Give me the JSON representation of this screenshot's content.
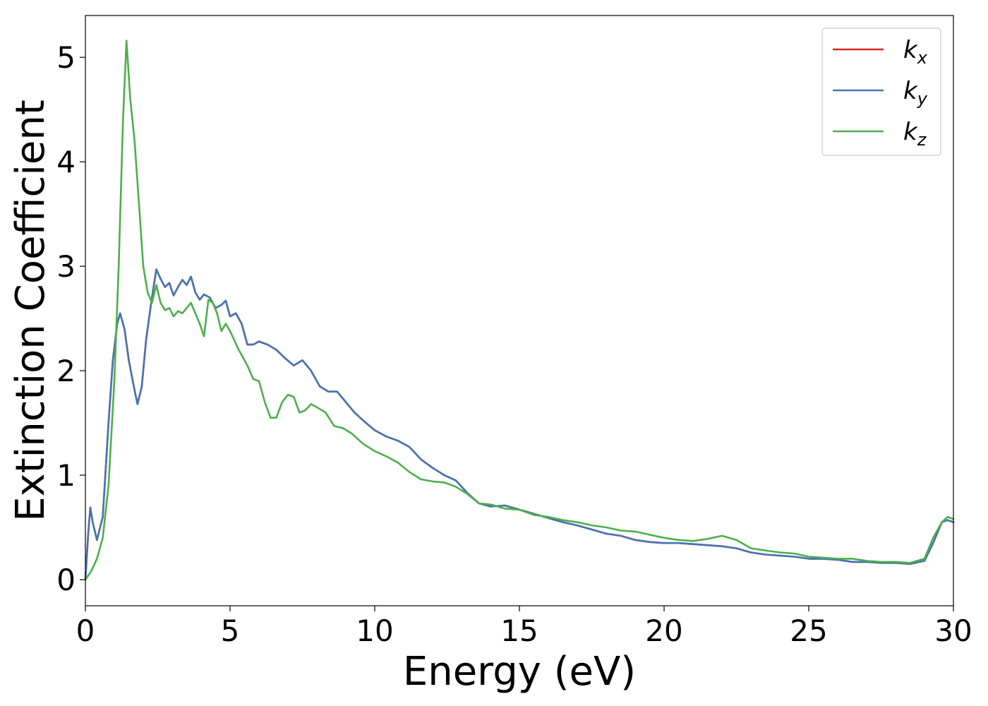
{
  "chart_data": {
    "type": "line",
    "xlabel": "Energy (eV)",
    "ylabel": "Extinction Coefficient",
    "xlim": [
      0,
      30
    ],
    "ylim": [
      -0.25,
      5.4
    ],
    "x_ticks": [
      "0",
      "5",
      "10",
      "15",
      "20",
      "25",
      "30"
    ],
    "y_ticks": [
      "0",
      "1",
      "2",
      "3",
      "4",
      "5"
    ],
    "grid": false,
    "legend_position": "top-right",
    "series": [
      {
        "name": "k_x",
        "legend_base": "k",
        "legend_sub": "x",
        "color": "#d62728",
        "points": [
          [
            0,
            0
          ],
          [
            0.1,
            0.45
          ],
          [
            0.17,
            0.69
          ],
          [
            0.25,
            0.55
          ],
          [
            0.4,
            0.38
          ],
          [
            0.6,
            0.6
          ],
          [
            0.8,
            1.5
          ],
          [
            0.95,
            2.1
          ],
          [
            1.1,
            2.45
          ],
          [
            1.2,
            2.55
          ],
          [
            1.35,
            2.4
          ],
          [
            1.5,
            2.1
          ],
          [
            1.65,
            1.88
          ],
          [
            1.8,
            1.68
          ],
          [
            1.95,
            1.85
          ],
          [
            2.1,
            2.3
          ],
          [
            2.3,
            2.7
          ],
          [
            2.45,
            2.97
          ],
          [
            2.6,
            2.88
          ],
          [
            2.75,
            2.8
          ],
          [
            2.9,
            2.84
          ],
          [
            3.05,
            2.72
          ],
          [
            3.2,
            2.8
          ],
          [
            3.35,
            2.87
          ],
          [
            3.5,
            2.82
          ],
          [
            3.65,
            2.9
          ],
          [
            3.8,
            2.75
          ],
          [
            3.95,
            2.68
          ],
          [
            4.1,
            2.73
          ],
          [
            4.3,
            2.7
          ],
          [
            4.5,
            2.6
          ],
          [
            4.7,
            2.63
          ],
          [
            4.85,
            2.67
          ],
          [
            5.0,
            2.52
          ],
          [
            5.2,
            2.55
          ],
          [
            5.4,
            2.45
          ],
          [
            5.6,
            2.25
          ],
          [
            5.8,
            2.25
          ],
          [
            6.0,
            2.28
          ],
          [
            6.3,
            2.25
          ],
          [
            6.6,
            2.2
          ],
          [
            6.9,
            2.12
          ],
          [
            7.2,
            2.05
          ],
          [
            7.5,
            2.1
          ],
          [
            7.8,
            2.0
          ],
          [
            8.1,
            1.85
          ],
          [
            8.4,
            1.8
          ],
          [
            8.7,
            1.8
          ],
          [
            9.0,
            1.7
          ],
          [
            9.3,
            1.6
          ],
          [
            9.7,
            1.5
          ],
          [
            10.0,
            1.43
          ],
          [
            10.4,
            1.37
          ],
          [
            10.8,
            1.33
          ],
          [
            11.2,
            1.27
          ],
          [
            11.6,
            1.15
          ],
          [
            12.0,
            1.07
          ],
          [
            12.4,
            1.0
          ],
          [
            12.8,
            0.95
          ],
          [
            13.2,
            0.83
          ],
          [
            13.6,
            0.73
          ],
          [
            14.0,
            0.7
          ],
          [
            14.5,
            0.71
          ],
          [
            15.0,
            0.67
          ],
          [
            15.5,
            0.63
          ],
          [
            16.0,
            0.59
          ],
          [
            16.5,
            0.55
          ],
          [
            17.0,
            0.52
          ],
          [
            17.5,
            0.48
          ],
          [
            18.0,
            0.44
          ],
          [
            18.5,
            0.42
          ],
          [
            19.0,
            0.38
          ],
          [
            19.5,
            0.36
          ],
          [
            20.0,
            0.35
          ],
          [
            20.5,
            0.35
          ],
          [
            21.0,
            0.34
          ],
          [
            21.5,
            0.33
          ],
          [
            22.0,
            0.32
          ],
          [
            22.5,
            0.3
          ],
          [
            23.0,
            0.26
          ],
          [
            23.5,
            0.24
          ],
          [
            24.0,
            0.23
          ],
          [
            24.5,
            0.22
          ],
          [
            25.0,
            0.2
          ],
          [
            25.5,
            0.2
          ],
          [
            26.0,
            0.19
          ],
          [
            26.5,
            0.17
          ],
          [
            27.0,
            0.17
          ],
          [
            27.5,
            0.16
          ],
          [
            28.0,
            0.16
          ],
          [
            28.5,
            0.15
          ],
          [
            29.0,
            0.18
          ],
          [
            29.3,
            0.35
          ],
          [
            29.6,
            0.55
          ],
          [
            29.8,
            0.57
          ],
          [
            30.0,
            0.55
          ]
        ]
      },
      {
        "name": "k_y",
        "legend_base": "k",
        "legend_sub": "y",
        "color": "#4575b4",
        "points": [
          [
            0,
            0
          ],
          [
            0.1,
            0.45
          ],
          [
            0.17,
            0.69
          ],
          [
            0.25,
            0.55
          ],
          [
            0.4,
            0.38
          ],
          [
            0.6,
            0.6
          ],
          [
            0.8,
            1.5
          ],
          [
            0.95,
            2.1
          ],
          [
            1.1,
            2.45
          ],
          [
            1.2,
            2.55
          ],
          [
            1.35,
            2.4
          ],
          [
            1.5,
            2.1
          ],
          [
            1.65,
            1.88
          ],
          [
            1.8,
            1.68
          ],
          [
            1.95,
            1.85
          ],
          [
            2.1,
            2.3
          ],
          [
            2.3,
            2.7
          ],
          [
            2.45,
            2.97
          ],
          [
            2.6,
            2.88
          ],
          [
            2.75,
            2.8
          ],
          [
            2.9,
            2.84
          ],
          [
            3.05,
            2.72
          ],
          [
            3.2,
            2.8
          ],
          [
            3.35,
            2.87
          ],
          [
            3.5,
            2.82
          ],
          [
            3.65,
            2.9
          ],
          [
            3.8,
            2.75
          ],
          [
            3.95,
            2.68
          ],
          [
            4.1,
            2.73
          ],
          [
            4.3,
            2.7
          ],
          [
            4.5,
            2.6
          ],
          [
            4.7,
            2.63
          ],
          [
            4.85,
            2.67
          ],
          [
            5.0,
            2.52
          ],
          [
            5.2,
            2.55
          ],
          [
            5.4,
            2.45
          ],
          [
            5.6,
            2.25
          ],
          [
            5.8,
            2.25
          ],
          [
            6.0,
            2.28
          ],
          [
            6.3,
            2.25
          ],
          [
            6.6,
            2.2
          ],
          [
            6.9,
            2.12
          ],
          [
            7.2,
            2.05
          ],
          [
            7.5,
            2.1
          ],
          [
            7.8,
            2.0
          ],
          [
            8.1,
            1.85
          ],
          [
            8.4,
            1.8
          ],
          [
            8.7,
            1.8
          ],
          [
            9.0,
            1.7
          ],
          [
            9.3,
            1.6
          ],
          [
            9.7,
            1.5
          ],
          [
            10.0,
            1.43
          ],
          [
            10.4,
            1.37
          ],
          [
            10.8,
            1.33
          ],
          [
            11.2,
            1.27
          ],
          [
            11.6,
            1.15
          ],
          [
            12.0,
            1.07
          ],
          [
            12.4,
            1.0
          ],
          [
            12.8,
            0.95
          ],
          [
            13.2,
            0.83
          ],
          [
            13.6,
            0.73
          ],
          [
            14.0,
            0.7
          ],
          [
            14.5,
            0.71
          ],
          [
            15.0,
            0.67
          ],
          [
            15.5,
            0.63
          ],
          [
            16.0,
            0.59
          ],
          [
            16.5,
            0.55
          ],
          [
            17.0,
            0.52
          ],
          [
            17.5,
            0.48
          ],
          [
            18.0,
            0.44
          ],
          [
            18.5,
            0.42
          ],
          [
            19.0,
            0.38
          ],
          [
            19.5,
            0.36
          ],
          [
            20.0,
            0.35
          ],
          [
            20.5,
            0.35
          ],
          [
            21.0,
            0.34
          ],
          [
            21.5,
            0.33
          ],
          [
            22.0,
            0.32
          ],
          [
            22.5,
            0.3
          ],
          [
            23.0,
            0.26
          ],
          [
            23.5,
            0.24
          ],
          [
            24.0,
            0.23
          ],
          [
            24.5,
            0.22
          ],
          [
            25.0,
            0.2
          ],
          [
            25.5,
            0.2
          ],
          [
            26.0,
            0.19
          ],
          [
            26.5,
            0.17
          ],
          [
            27.0,
            0.17
          ],
          [
            27.5,
            0.16
          ],
          [
            28.0,
            0.16
          ],
          [
            28.5,
            0.15
          ],
          [
            29.0,
            0.18
          ],
          [
            29.3,
            0.35
          ],
          [
            29.6,
            0.55
          ],
          [
            29.8,
            0.57
          ],
          [
            30.0,
            0.55
          ]
        ]
      },
      {
        "name": "k_z",
        "legend_base": "k",
        "legend_sub": "z",
        "color": "#4daf4a",
        "points": [
          [
            0,
            0
          ],
          [
            0.2,
            0.08
          ],
          [
            0.4,
            0.2
          ],
          [
            0.6,
            0.4
          ],
          [
            0.8,
            0.9
          ],
          [
            1.0,
            1.9
          ],
          [
            1.15,
            3.0
          ],
          [
            1.3,
            4.4
          ],
          [
            1.42,
            5.16
          ],
          [
            1.55,
            4.6
          ],
          [
            1.7,
            4.2
          ],
          [
            1.85,
            3.6
          ],
          [
            2.0,
            3.0
          ],
          [
            2.15,
            2.75
          ],
          [
            2.3,
            2.65
          ],
          [
            2.45,
            2.82
          ],
          [
            2.6,
            2.65
          ],
          [
            2.75,
            2.58
          ],
          [
            2.9,
            2.6
          ],
          [
            3.05,
            2.52
          ],
          [
            3.2,
            2.57
          ],
          [
            3.35,
            2.55
          ],
          [
            3.5,
            2.6
          ],
          [
            3.65,
            2.65
          ],
          [
            3.8,
            2.55
          ],
          [
            3.95,
            2.45
          ],
          [
            4.1,
            2.33
          ],
          [
            4.25,
            2.68
          ],
          [
            4.4,
            2.65
          ],
          [
            4.55,
            2.55
          ],
          [
            4.7,
            2.38
          ],
          [
            4.85,
            2.45
          ],
          [
            5.0,
            2.38
          ],
          [
            5.3,
            2.2
          ],
          [
            5.6,
            2.05
          ],
          [
            5.8,
            1.92
          ],
          [
            6.0,
            1.9
          ],
          [
            6.2,
            1.7
          ],
          [
            6.4,
            1.55
          ],
          [
            6.6,
            1.55
          ],
          [
            6.8,
            1.7
          ],
          [
            7.0,
            1.77
          ],
          [
            7.2,
            1.75
          ],
          [
            7.4,
            1.6
          ],
          [
            7.6,
            1.62
          ],
          [
            7.8,
            1.68
          ],
          [
            8.0,
            1.65
          ],
          [
            8.3,
            1.6
          ],
          [
            8.6,
            1.47
          ],
          [
            8.9,
            1.45
          ],
          [
            9.2,
            1.4
          ],
          [
            9.6,
            1.3
          ],
          [
            10.0,
            1.23
          ],
          [
            10.4,
            1.18
          ],
          [
            10.8,
            1.12
          ],
          [
            11.2,
            1.03
          ],
          [
            11.6,
            0.96
          ],
          [
            12.0,
            0.94
          ],
          [
            12.4,
            0.93
          ],
          [
            12.8,
            0.89
          ],
          [
            13.2,
            0.82
          ],
          [
            13.6,
            0.73
          ],
          [
            14.0,
            0.72
          ],
          [
            14.5,
            0.68
          ],
          [
            15.0,
            0.67
          ],
          [
            15.5,
            0.62
          ],
          [
            16.0,
            0.6
          ],
          [
            16.5,
            0.57
          ],
          [
            17.0,
            0.55
          ],
          [
            17.5,
            0.52
          ],
          [
            18.0,
            0.5
          ],
          [
            18.5,
            0.47
          ],
          [
            19.0,
            0.46
          ],
          [
            19.5,
            0.43
          ],
          [
            20.0,
            0.4
          ],
          [
            20.5,
            0.38
          ],
          [
            21.0,
            0.37
          ],
          [
            21.5,
            0.39
          ],
          [
            22.0,
            0.42
          ],
          [
            22.5,
            0.38
          ],
          [
            23.0,
            0.3
          ],
          [
            23.5,
            0.28
          ],
          [
            24.0,
            0.26
          ],
          [
            24.5,
            0.25
          ],
          [
            25.0,
            0.22
          ],
          [
            25.5,
            0.21
          ],
          [
            26.0,
            0.2
          ],
          [
            26.5,
            0.2
          ],
          [
            27.0,
            0.18
          ],
          [
            27.5,
            0.17
          ],
          [
            28.0,
            0.17
          ],
          [
            28.5,
            0.16
          ],
          [
            29.0,
            0.2
          ],
          [
            29.3,
            0.4
          ],
          [
            29.6,
            0.55
          ],
          [
            29.8,
            0.6
          ],
          [
            30.0,
            0.58
          ]
        ]
      }
    ]
  }
}
